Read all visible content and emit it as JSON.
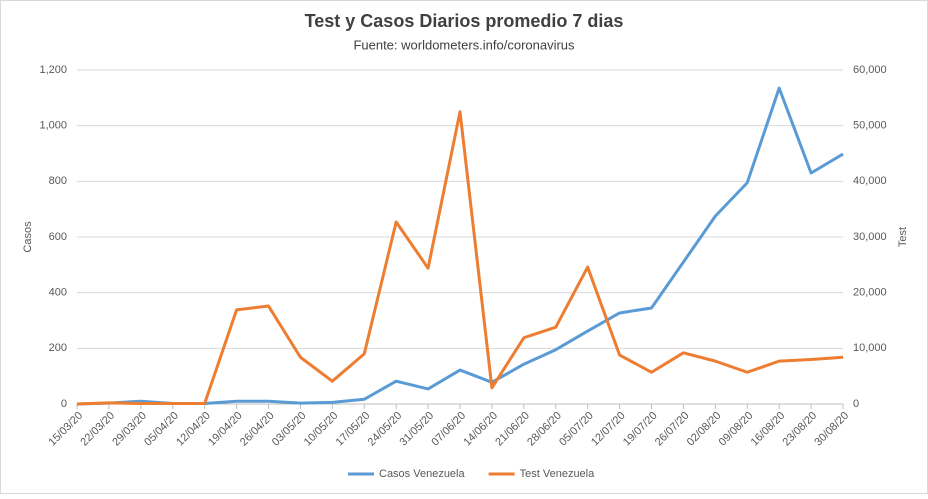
{
  "chart_data": {
    "type": "line",
    "title": "Test y Casos Diarios promedio 7 dias",
    "subtitle": "Fuente: worldometers.info/coronavirus",
    "y_label": "Casos",
    "y2_label": "Test",
    "categories": [
      "15/03/20",
      "22/03/20",
      "29/03/20",
      "05/04/20",
      "12/04/20",
      "19/04/20",
      "26/04/20",
      "03/05/20",
      "10/05/20",
      "17/05/20",
      "24/05/20",
      "31/05/20",
      "07/06/20",
      "14/06/20",
      "21/06/20",
      "28/06/20",
      "05/07/20",
      "12/07/20",
      "19/07/20",
      "26/07/20",
      "02/08/20",
      "09/08/20",
      "16/08/20",
      "23/08/20",
      "30/08/20"
    ],
    "series": [
      {
        "name": "Casos Venezuela",
        "color": "#5b9bd5",
        "values": [
          0,
          3,
          10,
          2,
          2,
          10,
          10,
          3,
          6,
          17,
          82,
          54,
          122,
          78,
          143,
          195,
          262,
          327,
          345,
          510,
          675,
          795,
          1135,
          830,
          898
        ]
      },
      {
        "name": "Test Venezuela",
        "color": "#ed7d31",
        "axis": "y2",
        "values": [
          0,
          200,
          100,
          100,
          100,
          16900,
          17600,
          8400,
          4100,
          9000,
          32700,
          24400,
          52500,
          2900,
          11900,
          13800,
          24600,
          8800,
          5700,
          9200,
          7700,
          5700,
          7700,
          8000,
          8400
        ]
      }
    ],
    "ylim": [
      0,
      1200
    ],
    "yticks": [
      0,
      200,
      400,
      600,
      800,
      {
        "value": 1000,
        "label": "1,000"
      },
      {
        "value": 1200,
        "label": "1,200"
      }
    ],
    "y2lim": [
      0,
      60000
    ],
    "y2ticks": [
      0,
      {
        "value": 10000,
        "label": "10,000"
      },
      {
        "value": 20000,
        "label": "20,000"
      },
      {
        "value": 30000,
        "label": "30,000"
      },
      {
        "value": 40000,
        "label": "40,000"
      },
      {
        "value": 50000,
        "label": "50,000"
      },
      {
        "value": 60000,
        "label": "60,000"
      }
    ],
    "grid": true,
    "legend": "bottom"
  }
}
